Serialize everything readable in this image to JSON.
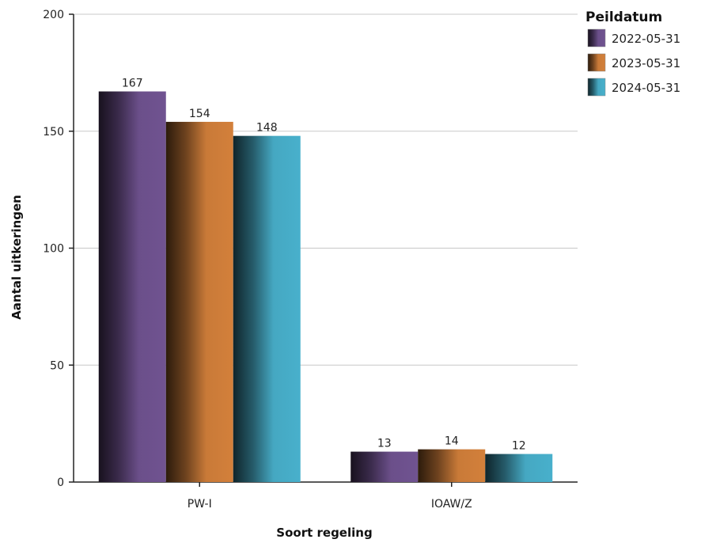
{
  "chart_data": {
    "type": "bar",
    "categories": [
      "PW-I",
      "IOAW/Z"
    ],
    "series": [
      {
        "name": "2022-05-31",
        "values": [
          167,
          13
        ],
        "color": "#6b4f8a"
      },
      {
        "name": "2023-05-31",
        "values": [
          154,
          14
        ],
        "color": "#c97a38"
      },
      {
        "name": "2024-05-31",
        "values": [
          148,
          12
        ],
        "color": "#45a8c2"
      }
    ],
    "xlabel": "Soort regeling",
    "ylabel": "Aantal uitkeringen",
    "ylim": [
      0,
      200
    ],
    "yticks": [
      0,
      50,
      100,
      150,
      200
    ],
    "grid": true,
    "legend_title": "Peildatum",
    "legend_position": "top-right"
  }
}
